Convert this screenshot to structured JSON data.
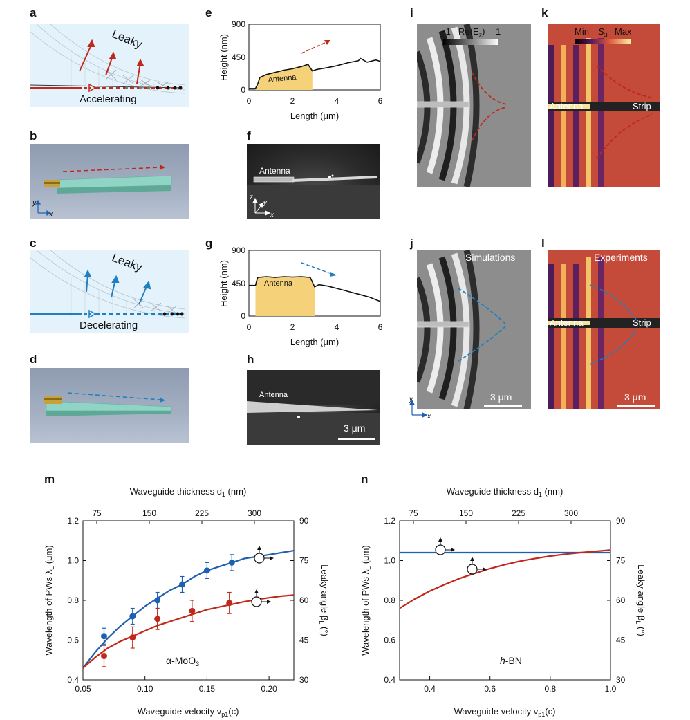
{
  "panel_labels": {
    "a": "a",
    "b": "b",
    "c": "c",
    "d": "d",
    "e": "e",
    "f": "f",
    "g": "g",
    "h": "h",
    "i": "i",
    "j": "j",
    "k": "k",
    "l": "l",
    "m": "m",
    "n": "n"
  },
  "panel_a": {
    "leaky": "Leaky",
    "bottom": "Accelerating"
  },
  "panel_c": {
    "leaky": "Leaky",
    "bottom": "Decelerating"
  },
  "panel_e": {
    "ylabel": "Height (nm)",
    "xlabel": "Length (μm)",
    "yticks": [
      "0",
      "450",
      "900"
    ],
    "xticks": [
      "0",
      "2",
      "4",
      "6"
    ],
    "antenna": "Antenna",
    "profile": [
      [
        0,
        20
      ],
      [
        0.3,
        20
      ],
      [
        0.4,
        80
      ],
      [
        0.5,
        170
      ],
      [
        0.8,
        210
      ],
      [
        1.2,
        240
      ],
      [
        1.6,
        270
      ],
      [
        2.0,
        290
      ],
      [
        2.4,
        320
      ],
      [
        2.7,
        350
      ],
      [
        2.9,
        260
      ],
      [
        3.1,
        280
      ],
      [
        3.5,
        300
      ],
      [
        4.0,
        330
      ],
      [
        4.5,
        370
      ],
      [
        5.0,
        400
      ],
      [
        5.1,
        430
      ],
      [
        5.4,
        380
      ],
      [
        5.8,
        410
      ],
      [
        6.0,
        390
      ]
    ]
  },
  "panel_g": {
    "ylabel": "Height (nm)",
    "xlabel": "Length (μm)",
    "yticks": [
      "0",
      "450",
      "900"
    ],
    "xticks": [
      "0",
      "2",
      "4",
      "6"
    ],
    "antenna": "Antenna",
    "profile": [
      [
        0,
        420
      ],
      [
        0.3,
        420
      ],
      [
        0.4,
        530
      ],
      [
        0.8,
        540
      ],
      [
        1.2,
        530
      ],
      [
        1.6,
        540
      ],
      [
        2.0,
        535
      ],
      [
        2.4,
        540
      ],
      [
        2.8,
        530
      ],
      [
        3.0,
        400
      ],
      [
        3.2,
        430
      ],
      [
        3.6,
        410
      ],
      [
        4.0,
        380
      ],
      [
        4.5,
        340
      ],
      [
        5.0,
        300
      ],
      [
        5.5,
        260
      ],
      [
        6.0,
        200
      ]
    ]
  },
  "panel_f": {
    "antenna": "Antenna",
    "z": "z",
    "y": "y",
    "x": "x"
  },
  "panel_h": {
    "antenna": "Antenna",
    "scale": "3 μm"
  },
  "panel_i": {
    "colorbar_min": "−1",
    "colorbar_label": "Re(E",
    "colorbar_sub": "z",
    "colorbar_close": ")",
    "colorbar_max": "1"
  },
  "panel_j": {
    "title": "Simulations",
    "scale": "3 μm",
    "y": "y",
    "x": "x"
  },
  "panel_k": {
    "colorbar_min": "Min",
    "colorbar_label": "S",
    "colorbar_sub": "3",
    "colorbar_max": "Max",
    "antenna": "Antenna",
    "strip": "Strip"
  },
  "panel_l": {
    "title": "Experiments",
    "antenna": "Antenna",
    "strip": "Strip",
    "scale": "3 μm"
  },
  "chart_data": [
    {
      "type": "line",
      "panel": "m",
      "top_axis_label": "Waveguide thickness d",
      "top_axis_sub": "1",
      "top_axis_unit": " (nm)",
      "top_ticks": [
        "75",
        "150",
        "225",
        "300"
      ],
      "xlabel": "Waveguide velocity v",
      "xlabel_sub": "p1",
      "xlabel_unit": "(c)",
      "ylabel": "Wavelength of PWs λ",
      "ylabel_sub": "L",
      "ylabel_unit": " (μm)",
      "y2label": "Leaky angle β",
      "y2label_sub": "L",
      "y2label_unit": " (°)",
      "xlim": [
        0.05,
        0.22
      ],
      "ylim": [
        0.4,
        1.2
      ],
      "y2lim": [
        30,
        90
      ],
      "xticks": [
        "0.05",
        "0.10",
        "0.15",
        "0.20"
      ],
      "yticks": [
        "0.4",
        "0.6",
        "0.8",
        "1.0",
        "1.2"
      ],
      "y2ticks": [
        "30",
        "45",
        "60",
        "75",
        "90"
      ],
      "material": "α-MoO",
      "material_sub": "3",
      "series": [
        {
          "color": "#1f5fb0",
          "axis": "left",
          "curve": [
            [
              0.05,
              0.46
            ],
            [
              0.06,
              0.54
            ],
            [
              0.07,
              0.61
            ],
            [
              0.08,
              0.67
            ],
            [
              0.09,
              0.72
            ],
            [
              0.1,
              0.77
            ],
            [
              0.11,
              0.81
            ],
            [
              0.12,
              0.85
            ],
            [
              0.13,
              0.88
            ],
            [
              0.14,
              0.92
            ],
            [
              0.15,
              0.95
            ],
            [
              0.16,
              0.97
            ],
            [
              0.17,
              0.99
            ],
            [
              0.18,
              1.01
            ],
            [
              0.19,
              1.02
            ],
            [
              0.2,
              1.03
            ],
            [
              0.21,
              1.04
            ],
            [
              0.22,
              1.05
            ]
          ],
          "points": [
            [
              0.067,
              0.62,
              0.04
            ],
            [
              0.09,
              0.72,
              0.04
            ],
            [
              0.11,
              0.8,
              0.04
            ],
            [
              0.13,
              0.88,
              0.04
            ],
            [
              0.15,
              0.95,
              0.04
            ],
            [
              0.17,
              0.99,
              0.04
            ]
          ]
        },
        {
          "color": "#c0281a",
          "axis": "right",
          "curve": [
            [
              0.05,
              34.5
            ],
            [
              0.06,
              38.5
            ],
            [
              0.07,
              42
            ],
            [
              0.08,
              44.5
            ],
            [
              0.09,
              46.5
            ],
            [
              0.1,
              48.5
            ],
            [
              0.11,
              50.5
            ],
            [
              0.12,
              52
            ],
            [
              0.13,
              53.5
            ],
            [
              0.14,
              55
            ],
            [
              0.15,
              56.5
            ],
            [
              0.16,
              57.5
            ],
            [
              0.17,
              58.5
            ],
            [
              0.18,
              59.5
            ],
            [
              0.19,
              60.3
            ],
            [
              0.2,
              61
            ],
            [
              0.21,
              61.6
            ],
            [
              0.22,
              62
            ]
          ],
          "points": [
            [
              0.067,
              39,
              4
            ],
            [
              0.09,
              46,
              4
            ],
            [
              0.11,
              53,
              4
            ],
            [
              0.138,
              56,
              4
            ],
            [
              0.168,
              59,
              4
            ]
          ]
        }
      ]
    },
    {
      "type": "line",
      "panel": "n",
      "top_axis_label": "Waveguide thickness d",
      "top_axis_sub": "1",
      "top_axis_unit": " (nm)",
      "top_ticks": [
        "75",
        "150",
        "225",
        "300"
      ],
      "xlabel": "Waveguide velocity v",
      "xlabel_sub": "p1",
      "xlabel_unit": "(c)",
      "ylabel": "Wavelength of PWs λ",
      "ylabel_sub": "L",
      "ylabel_unit": " (μm)",
      "y2label": "Leaky angle β",
      "y2label_sub": "L",
      "y2label_unit": " (°)",
      "xlim": [
        0.3,
        1.0
      ],
      "ylim": [
        0.4,
        1.2
      ],
      "y2lim": [
        30,
        90
      ],
      "xticks": [
        "0.4",
        "0.6",
        "0.8",
        "1.0"
      ],
      "yticks": [
        "0.4",
        "0.6",
        "0.8",
        "1.0",
        "1.2"
      ],
      "y2ticks": [
        "30",
        "45",
        "60",
        "75",
        "90"
      ],
      "material": "h",
      "material_rest": "-BN",
      "series": [
        {
          "color": "#1f5fb0",
          "axis": "left",
          "curve": [
            [
              0.3,
              1.04
            ],
            [
              1.0,
              1.04
            ]
          ]
        },
        {
          "color": "#c0281a",
          "axis": "right",
          "curve": [
            [
              0.3,
              57
            ],
            [
              0.35,
              60.5
            ],
            [
              0.4,
              63.5
            ],
            [
              0.45,
              66
            ],
            [
              0.5,
              68.3
            ],
            [
              0.55,
              70.2
            ],
            [
              0.6,
              72
            ],
            [
              0.65,
              73.5
            ],
            [
              0.7,
              74.8
            ],
            [
              0.75,
              75.8
            ],
            [
              0.8,
              76.7
            ],
            [
              0.85,
              77.4
            ],
            [
              0.9,
              78
            ],
            [
              0.95,
              78.5
            ],
            [
              1.0,
              79
            ]
          ]
        }
      ]
    }
  ]
}
